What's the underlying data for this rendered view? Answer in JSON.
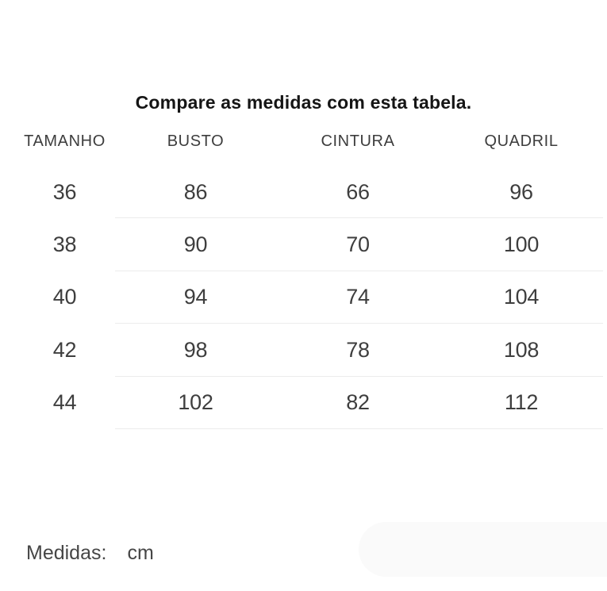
{
  "title": "Compare as medidas com esta tabela.",
  "table": {
    "headers": [
      "TAMANHO",
      "BUSTO",
      "CINTURA",
      "QUADRIL"
    ],
    "rows": [
      {
        "cells": [
          "36",
          "86",
          "66",
          "96"
        ]
      },
      {
        "cells": [
          "38",
          "90",
          "70",
          "100"
        ]
      },
      {
        "cells": [
          "40",
          "94",
          "74",
          "104"
        ]
      },
      {
        "cells": [
          "42",
          "98",
          "78",
          "108"
        ]
      },
      {
        "cells": [
          "44",
          "102",
          "82",
          "112"
        ]
      }
    ]
  },
  "footer": {
    "label": "Medidas:",
    "unit": "cm"
  },
  "colors": {
    "title_text": "#151515",
    "table_text": "#3e3e3e",
    "divider": "#ececec",
    "pill_background": "#fafafa"
  },
  "chart_data": {
    "type": "table",
    "title": "Compare as medidas com esta tabela.",
    "columns": [
      "TAMANHO",
      "BUSTO",
      "CINTURA",
      "QUADRIL"
    ],
    "rows": [
      [
        36,
        86,
        66,
        96
      ],
      [
        38,
        90,
        70,
        100
      ],
      [
        40,
        94,
        74,
        104
      ],
      [
        42,
        98,
        78,
        108
      ],
      [
        44,
        102,
        82,
        112
      ]
    ],
    "units": "cm",
    "layout": {
      "grid": "horizontal dividers under each data row, indented past first column",
      "header_position": "top"
    }
  }
}
